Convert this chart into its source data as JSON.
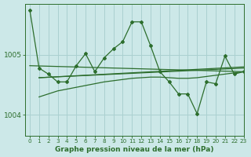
{
  "title": "Graphe pression niveau de la mer (hPa)",
  "bg_color": "#cce8e8",
  "grid_color": "#aad0d0",
  "line_color": "#2d6e2d",
  "xlim": [
    -0.5,
    23
  ],
  "ylim": [
    1003.65,
    1005.85
  ],
  "yticks": [
    1004,
    1005
  ],
  "xticks": [
    0,
    1,
    2,
    3,
    4,
    5,
    6,
    7,
    8,
    9,
    10,
    11,
    12,
    13,
    14,
    15,
    16,
    17,
    18,
    19,
    20,
    21,
    22,
    23
  ],
  "main_line_x": [
    0,
    1,
    2,
    3,
    4,
    5,
    6,
    7,
    8,
    9,
    10,
    11,
    12,
    13,
    14,
    15,
    16,
    17,
    18,
    19,
    20,
    21,
    22,
    23
  ],
  "main_line_y": [
    1005.75,
    1004.78,
    1004.68,
    1004.55,
    1004.55,
    1004.82,
    1005.02,
    1004.72,
    1004.95,
    1005.1,
    1005.22,
    1005.55,
    1005.55,
    1005.15,
    1004.72,
    1004.55,
    1004.35,
    1004.35,
    1004.02,
    1004.55,
    1004.52,
    1004.98,
    1004.68,
    1004.72
  ],
  "trend1_x": [
    0,
    23
  ],
  "trend1_y": [
    1004.82,
    1004.72
  ],
  "trend2_x": [
    1,
    23
  ],
  "trend2_y": [
    1004.62,
    1004.78
  ],
  "trend3_x": [
    1,
    23
  ],
  "trend3_y": [
    1004.62,
    1004.8
  ],
  "smooth_line_x": [
    1,
    2,
    3,
    4,
    5,
    6,
    7,
    8,
    9,
    10,
    11,
    12,
    13,
    14,
    15,
    16,
    17,
    18,
    19,
    20,
    21,
    22,
    23
  ],
  "smooth_line_y": [
    1004.3,
    1004.35,
    1004.4,
    1004.43,
    1004.46,
    1004.49,
    1004.52,
    1004.55,
    1004.57,
    1004.59,
    1004.61,
    1004.62,
    1004.63,
    1004.63,
    1004.62,
    1004.61,
    1004.61,
    1004.62,
    1004.64,
    1004.66,
    1004.68,
    1004.7,
    1004.72
  ]
}
